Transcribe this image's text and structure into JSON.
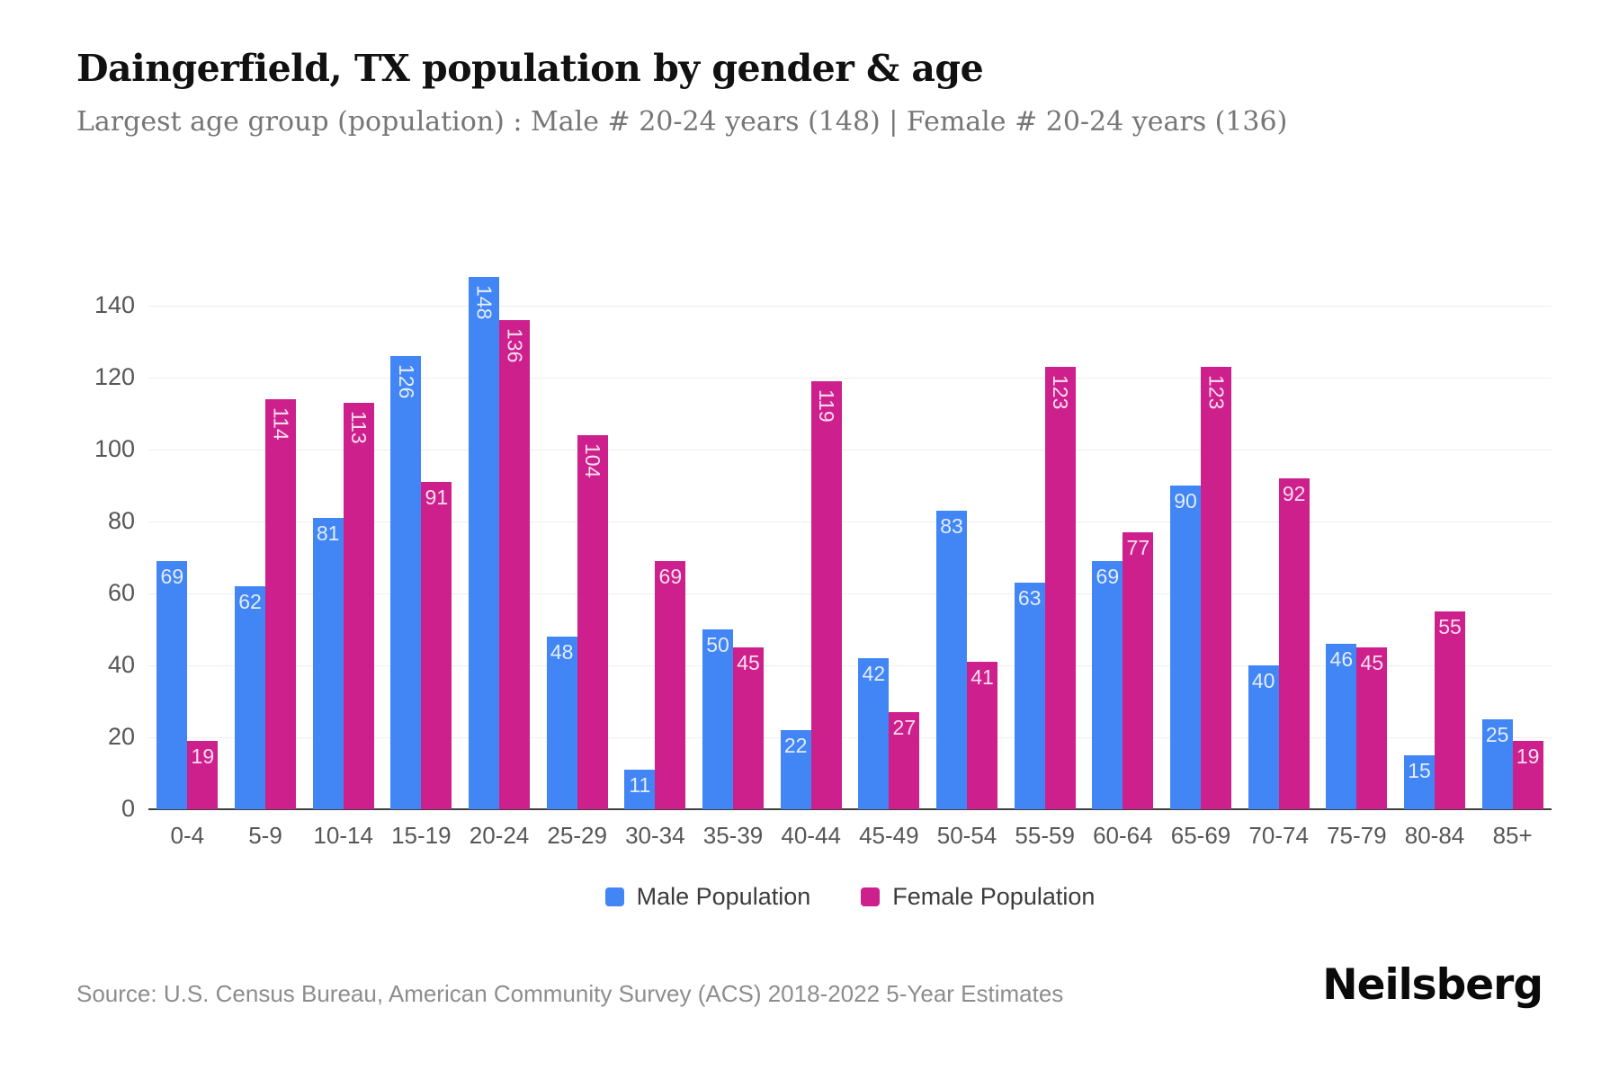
{
  "header": {
    "title": "Daingerfield, TX population by gender & age",
    "subtitle": "Largest age group (population) : Male # 20-24 years (148) | Female # 20-24 years (136)"
  },
  "chart_data": {
    "type": "bar",
    "categories": [
      "0-4",
      "5-9",
      "10-14",
      "15-19",
      "20-24",
      "25-29",
      "30-34",
      "35-39",
      "40-44",
      "45-49",
      "50-54",
      "55-59",
      "60-64",
      "65-69",
      "70-74",
      "75-79",
      "80-84",
      "85+"
    ],
    "series": [
      {
        "name": "Male Population",
        "color": "#4285F4",
        "values": [
          69,
          62,
          81,
          126,
          148,
          48,
          11,
          50,
          22,
          42,
          83,
          63,
          69,
          90,
          40,
          46,
          15,
          25
        ]
      },
      {
        "name": "Female Population",
        "color": "#CD208C",
        "values": [
          19,
          114,
          113,
          91,
          136,
          104,
          69,
          45,
          119,
          27,
          41,
          123,
          77,
          123,
          92,
          45,
          55,
          19
        ]
      }
    ],
    "title": "Daingerfield, TX population by gender & age",
    "xlabel": "",
    "ylabel": "",
    "ylim": [
      0,
      150
    ],
    "yticks": [
      0,
      20,
      40,
      60,
      80,
      100,
      120,
      140
    ],
    "grid": true,
    "legend_position": "bottom",
    "value_label_style": "inside bar top, white, rotated vertical when value >= 100"
  },
  "footer": {
    "source": "Source: U.S. Census Bureau, American Community Survey (ACS) 2018-2022 5-Year Estimates",
    "brand": "Neilsberg"
  }
}
